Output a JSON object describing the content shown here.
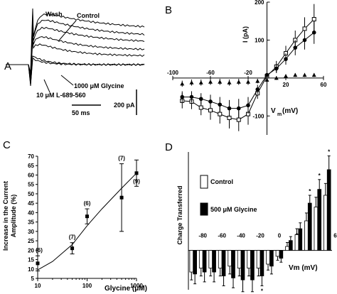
{
  "panels": {
    "a": {
      "letter": "A",
      "labels": {
        "wash": "Wash",
        "control": "Control",
        "glycine": "1000 μM Glycine",
        "l689": "10 μM L-689-560",
        "time_scale": "50 ms",
        "current_scale": "200 pA"
      }
    },
    "b": {
      "letter": "B",
      "ylabel": "I (pA)",
      "xlabel": "V",
      "xlabel_sub": "m",
      "xlabel_unit": "(mV)"
    },
    "c": {
      "letter": "C",
      "ylabel_line1": "Increase in the Current",
      "ylabel_line2": "Amplitude (%)",
      "xlabel": "Glycine (μM)"
    },
    "d": {
      "letter": "D",
      "ylabel": "Charge Transferred",
      "xlabel": "Vm (mV)",
      "legend": [
        "Control",
        "500 μM Glycine"
      ]
    }
  },
  "chart_data": [
    {
      "panel": "B",
      "type": "line",
      "xlabel": "Vm (mV)",
      "ylabel": "I (pA)",
      "xlim": [
        -100,
        60
      ],
      "ylim": [
        -150,
        200
      ],
      "xticks": [
        -100,
        -60,
        -20,
        20,
        60
      ],
      "yticks": [
        200,
        100,
        -100
      ],
      "series": [
        {
          "marker": "open-square",
          "x": [
            -90,
            -80,
            -70,
            -60,
            -50,
            -40,
            -30,
            -20,
            -10,
            0,
            10,
            20,
            30,
            40,
            50
          ],
          "y": [
            -60,
            -62,
            -78,
            -85,
            -95,
            -105,
            -110,
            -95,
            -40,
            5,
            30,
            65,
            100,
            130,
            155
          ],
          "err": [
            20,
            20,
            20,
            25,
            25,
            28,
            30,
            28,
            15,
            10,
            15,
            20,
            25,
            30,
            40
          ]
        },
        {
          "marker": "filled-circle",
          "x": [
            -90,
            -80,
            -70,
            -60,
            -50,
            -40,
            -30,
            -20,
            -10,
            0,
            10,
            20,
            30,
            40,
            50
          ],
          "y": [
            -50,
            -50,
            -55,
            -62,
            -70,
            -80,
            -80,
            -72,
            -30,
            8,
            25,
            50,
            80,
            100,
            120
          ],
          "err": [
            15,
            15,
            15,
            18,
            20,
            22,
            25,
            22,
            12,
            10,
            12,
            15,
            20,
            25,
            30
          ]
        },
        {
          "marker": "filled-triangle",
          "x": [
            -90,
            -80,
            -70,
            -60,
            -50,
            -40,
            -30,
            -20,
            -10,
            0,
            10,
            20,
            30,
            40,
            50
          ],
          "y": [
            -15,
            -12,
            -12,
            -10,
            -10,
            -12,
            -10,
            -10,
            -8,
            -5,
            0,
            5,
            8,
            8,
            8
          ],
          "err": [
            8,
            8,
            8,
            8,
            8,
            8,
            8,
            8,
            6,
            6,
            5,
            5,
            5,
            5,
            5
          ]
        }
      ]
    },
    {
      "panel": "C",
      "type": "scatter",
      "xlabel": "Glycine (μM)",
      "ylabel": "Increase in the Current Amplitude (%)",
      "xscale": "log",
      "xlim": [
        10,
        1000
      ],
      "ylim": [
        5,
        70
      ],
      "xticks": [
        10,
        100,
        1000
      ],
      "yticks": [
        5,
        10,
        15,
        20,
        25,
        30,
        35,
        40,
        45,
        50,
        55,
        60,
        65,
        70
      ],
      "x": [
        10,
        50,
        100,
        500,
        1000
      ],
      "y": [
        13,
        21,
        38,
        48,
        61
      ],
      "err": [
        4,
        3,
        4,
        18,
        7
      ],
      "n_labels": [
        "(6)",
        "(7)",
        "(6)",
        "(7)",
        "(9)"
      ],
      "fit": {
        "x": [
          10,
          20,
          50,
          100,
          200,
          500,
          1000
        ],
        "y": [
          9.5,
          14,
          23,
          33,
          42,
          53,
          61
        ]
      }
    },
    {
      "panel": "D",
      "type": "bar",
      "xlabel": "Vm (mV)",
      "ylabel": "Charge Transferred",
      "xticks": [
        -80,
        -60,
        -40,
        -20,
        0,
        20,
        40,
        60
      ],
      "categories": [
        -90,
        -80,
        -70,
        -60,
        -50,
        -40,
        -30,
        -20,
        -10,
        0,
        10,
        20,
        30,
        40,
        50
      ],
      "ylim": [
        -20,
        50
      ],
      "series": [
        {
          "name": "Control",
          "values": [
            -11,
            -9,
            -9,
            -9,
            -8,
            -9,
            -9,
            -9,
            -7,
            -3,
            2,
            8,
            15,
            22,
            28
          ],
          "err": [
            4,
            4,
            4,
            4,
            4,
            4,
            4,
            4,
            3,
            2,
            2,
            3,
            4,
            5,
            6
          ]
        },
        {
          "name": "500 μM Glycine",
          "values": [
            -12,
            -11,
            -11,
            -13,
            -14,
            -15,
            -15,
            -13,
            -8,
            -4,
            5,
            11,
            24,
            31,
            41
          ],
          "err": [
            5,
            5,
            5,
            5,
            5,
            6,
            6,
            5,
            4,
            2,
            2,
            3,
            4,
            5,
            7
          ]
        }
      ],
      "significance": [
        "",
        "",
        "",
        "",
        "",
        "*",
        "*",
        "*",
        "",
        "",
        "",
        "",
        "*",
        "*",
        "*"
      ]
    }
  ]
}
